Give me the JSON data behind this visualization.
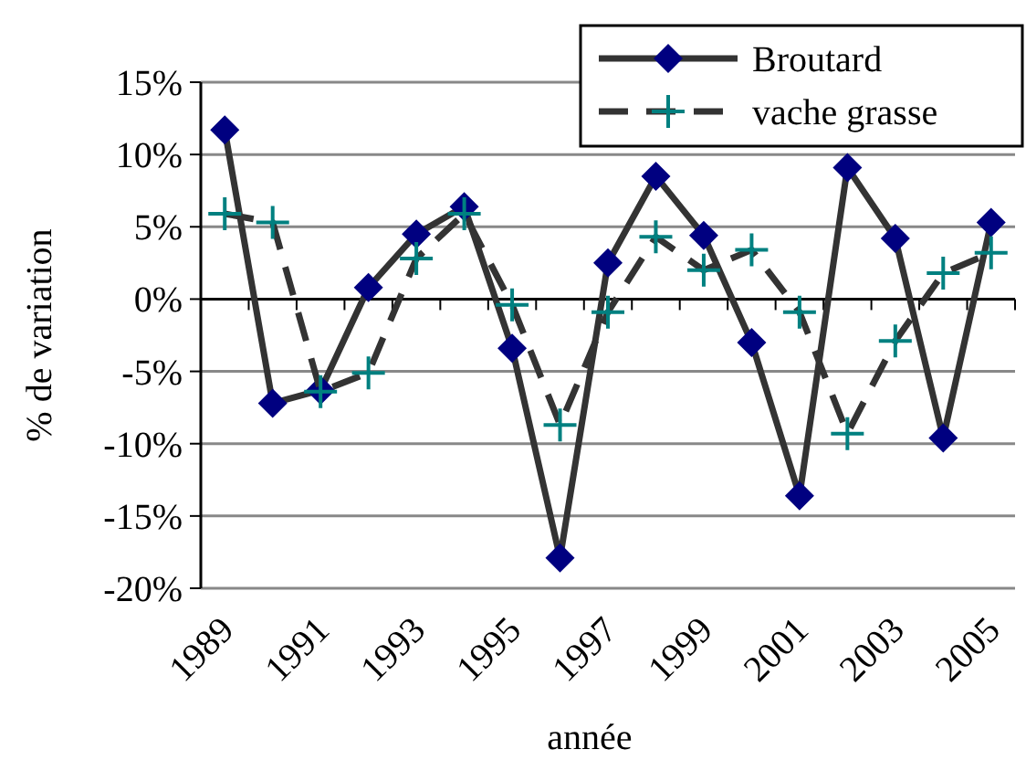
{
  "chart_data": {
    "type": "line",
    "xlabel": "année",
    "ylabel": "% de variation",
    "categories": [
      "1989",
      null,
      "1991",
      null,
      "1993",
      null,
      "1995",
      null,
      "1997",
      null,
      "1999",
      null,
      "2001",
      null,
      "2003",
      null,
      "2005"
    ],
    "series": [
      {
        "name": "Broutard",
        "color": "#000080",
        "marker": "diamond",
        "line_style": "solid",
        "values": [
          11.7,
          -7.2,
          -6.3,
          0.8,
          4.5,
          6.4,
          -3.4,
          -17.9,
          2.5,
          8.5,
          4.4,
          -3.0,
          -13.6,
          9.1,
          4.2,
          -9.6,
          5.3
        ]
      },
      {
        "name": "vache grasse",
        "color": "#008080",
        "marker": "cross",
        "line_style": "dashed",
        "values": [
          5.9,
          5.3,
          -6.4,
          -5.1,
          2.8,
          5.9,
          -0.4,
          -8.7,
          -0.9,
          4.3,
          2.0,
          3.4,
          -0.9,
          -9.3,
          -2.9,
          1.8,
          3.2
        ]
      }
    ],
    "ylim": [
      -20,
      15
    ],
    "yticks": [
      {
        "value": -20,
        "label": "-20%"
      },
      {
        "value": -15,
        "label": "-15%"
      },
      {
        "value": -10,
        "label": "-10%"
      },
      {
        "value": -5,
        "label": "-5%"
      },
      {
        "value": 0,
        "label": "0%"
      },
      {
        "value": 5,
        "label": "5%"
      },
      {
        "value": 10,
        "label": "10%"
      },
      {
        "value": 15,
        "label": "15%"
      }
    ],
    "grid": "y",
    "legend": "top right"
  }
}
